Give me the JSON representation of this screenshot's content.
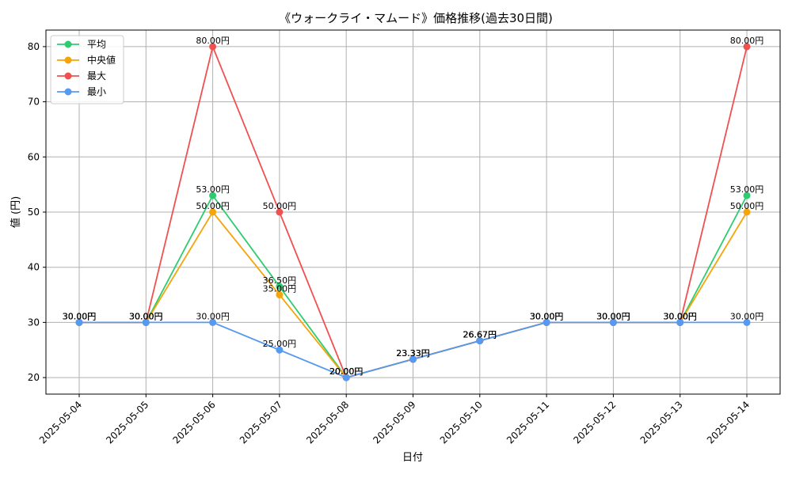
{
  "chart_data": {
    "type": "line",
    "title": "《ウォークライ・マムード》価格推移(過去30日間)",
    "xlabel": "日付",
    "ylabel": "値 (円)",
    "categories": [
      "2025-05-04",
      "2025-05-05",
      "2025-05-06",
      "2025-05-07",
      "2025-05-08",
      "2025-05-09",
      "2025-05-10",
      "2025-05-11",
      "2025-05-12",
      "2025-05-13",
      "2025-05-14"
    ],
    "ylim": [
      17,
      83
    ],
    "yticks": [
      20,
      30,
      40,
      50,
      60,
      70,
      80
    ],
    "grid": true,
    "legend_position": "top-left",
    "value_suffix": "円",
    "series": [
      {
        "name": "平均",
        "color": "#2ecc71",
        "values": [
          30,
          30,
          53,
          36.5,
          20,
          23.33,
          26.67,
          30,
          30,
          30,
          53
        ]
      },
      {
        "name": "中央値",
        "color": "#f5a50a",
        "values": [
          30,
          30,
          50,
          35,
          20,
          23.33,
          26.67,
          30,
          30,
          30,
          50
        ]
      },
      {
        "name": "最大",
        "color": "#f05050",
        "values": [
          30,
          30,
          80,
          50,
          20,
          23.33,
          26.67,
          30,
          30,
          30,
          80
        ]
      },
      {
        "name": "最小",
        "color": "#5599f0",
        "values": [
          30,
          30,
          30,
          25,
          20,
          23.33,
          26.67,
          30,
          30,
          30,
          30
        ]
      }
    ]
  }
}
